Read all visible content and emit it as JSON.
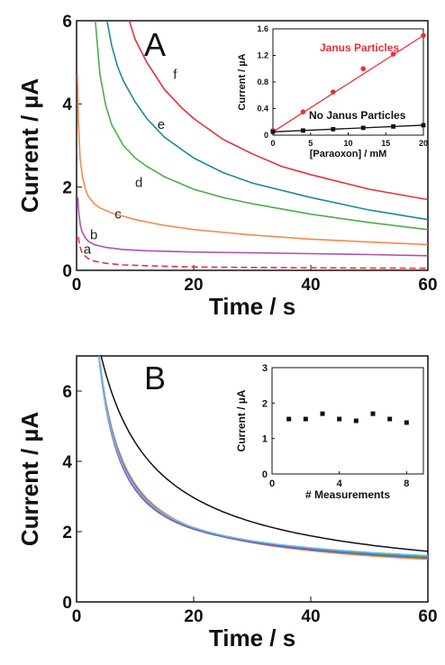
{
  "chart_data": [
    {
      "panel": "A",
      "type": "line",
      "xlabel": "Time / s",
      "ylabel": "Current / µA",
      "xlim": [
        0,
        60
      ],
      "ylim": [
        0,
        6
      ],
      "xticks": [
        0,
        20,
        40,
        60
      ],
      "yticks": [
        0,
        2,
        4,
        6
      ],
      "series": [
        {
          "name": "a",
          "color": "#e8303a",
          "dashed": true,
          "x": [
            0.3,
            0.5,
            1,
            2,
            3,
            5,
            8,
            12,
            20,
            30,
            40,
            50,
            60
          ],
          "y": [
            0.8,
            0.6,
            0.4,
            0.28,
            0.22,
            0.17,
            0.13,
            0.11,
            0.08,
            0.07,
            0.06,
            0.055,
            0.05
          ]
        },
        {
          "name": "b",
          "color": "#b04fb4",
          "x": [
            0.2,
            0.4,
            0.7,
            1,
            1.5,
            2,
            3,
            5,
            8,
            12,
            20,
            30,
            40,
            50,
            60
          ],
          "y": [
            1.75,
            1.35,
            1.05,
            0.9,
            0.78,
            0.7,
            0.62,
            0.55,
            0.5,
            0.47,
            0.44,
            0.42,
            0.4,
            0.38,
            0.35
          ]
        },
        {
          "name": "c",
          "color": "#f58a4a",
          "x": [
            0.15,
            0.3,
            0.6,
            1,
            1.5,
            2,
            3,
            4,
            6,
            8,
            10,
            15,
            20,
            30,
            40,
            50,
            60
          ],
          "y": [
            4.7,
            3.6,
            2.7,
            2.25,
            1.95,
            1.78,
            1.6,
            1.5,
            1.38,
            1.3,
            1.22,
            1.08,
            0.98,
            0.85,
            0.75,
            0.68,
            0.62
          ]
        },
        {
          "name": "d",
          "color": "#4caf48",
          "x": [
            3.2,
            4,
            5,
            6,
            8,
            10,
            12,
            15,
            20,
            25,
            30,
            40,
            50,
            60
          ],
          "y": [
            6.0,
            4.7,
            3.95,
            3.5,
            3.0,
            2.7,
            2.5,
            2.25,
            1.95,
            1.75,
            1.6,
            1.35,
            1.15,
            0.98
          ]
        },
        {
          "name": "e",
          "color": "#1a8a96",
          "x": [
            5.2,
            6,
            7,
            8,
            10,
            12,
            15,
            20,
            25,
            30,
            40,
            50,
            60
          ],
          "y": [
            6.0,
            5.4,
            4.9,
            4.55,
            4.05,
            3.65,
            3.2,
            2.7,
            2.35,
            2.1,
            1.75,
            1.45,
            1.22
          ]
        },
        {
          "name": "f",
          "color": "#e8303a",
          "x": [
            9,
            10,
            12,
            15,
            18,
            20,
            25,
            30,
            35,
            40,
            50,
            60
          ],
          "y": [
            6.0,
            5.55,
            5.0,
            4.35,
            3.9,
            3.65,
            3.15,
            2.8,
            2.5,
            2.3,
            1.95,
            1.7
          ]
        }
      ],
      "curve_labels": [
        {
          "text": "a",
          "x": 1.2,
          "y": 0.4
        },
        {
          "text": "b",
          "x": 2.3,
          "y": 0.75
        },
        {
          "text": "c",
          "x": 6.5,
          "y": 1.25
        },
        {
          "text": "d",
          "x": 10.0,
          "y": 2.0
        },
        {
          "text": "e",
          "x": 13.8,
          "y": 3.4
        },
        {
          "text": "f",
          "x": 16.5,
          "y": 4.6
        }
      ],
      "panel_label": "A",
      "inset": {
        "type": "scatter",
        "xlabel": "[Paraoxon] / mM",
        "ylabel": "Current / µA",
        "xlim": [
          0,
          20
        ],
        "ylim": [
          0,
          1.6
        ],
        "xticks": [
          0,
          5,
          10,
          15,
          20
        ],
        "yticks": [
          0,
          0.4,
          0.8,
          1.2,
          1.6
        ],
        "series": [
          {
            "name": "Janus Particles",
            "color": "#e8303a",
            "x": [
              0,
              4,
              8,
              12,
              16,
              20
            ],
            "y": [
              0.07,
              0.35,
              0.65,
              1.0,
              1.22,
              1.5
            ],
            "fit": [
              0.05,
              1.5
            ]
          },
          {
            "name": "No Janus Particles",
            "color": "#111111",
            "x": [
              0,
              4,
              8,
              12,
              16,
              20
            ],
            "y": [
              0.05,
              0.07,
              0.09,
              0.11,
              0.13,
              0.15
            ],
            "fit": [
              0.05,
              0.15
            ]
          }
        ]
      }
    },
    {
      "panel": "B",
      "type": "line",
      "xlabel": "Time / s",
      "ylabel": "Current / µA",
      "xlim": [
        0,
        60
      ],
      "ylim": [
        0,
        7
      ],
      "xticks": [
        0,
        20,
        40,
        60
      ],
      "yticks": [
        0,
        2,
        4,
        6
      ],
      "panel_label": "B",
      "series": [
        {
          "color": "#111111",
          "a": 7.5,
          "b": 4.25,
          "c": 0.11
        },
        {
          "color": "#e8303a",
          "a": 7.5,
          "b": 6.3,
          "c": 0.23
        },
        {
          "color": "#f58a4a",
          "a": 7.5,
          "b": 5.9,
          "c": 0.22
        },
        {
          "color": "#1a8a96",
          "a": 7.5,
          "b": 6.9,
          "c": 0.25
        },
        {
          "color": "#4caf48",
          "a": 7.5,
          "b": 6.6,
          "c": 0.24
        },
        {
          "color": "#5a66c8",
          "a": 7.5,
          "b": 6.3,
          "c": 0.23
        },
        {
          "color": "#b04fb4",
          "a": 7.5,
          "b": 7.0,
          "c": 0.25
        },
        {
          "color": "#5bc8e8",
          "a": 7.5,
          "b": 6.9,
          "c": 0.24
        }
      ],
      "inset": {
        "type": "scatter",
        "xlabel": "# Measurements",
        "ylabel": "Current / µA",
        "xlim": [
          0,
          9
        ],
        "ylim": [
          0,
          3
        ],
        "xticks": [
          0,
          4,
          8
        ],
        "yticks": [
          0,
          1,
          2,
          3
        ],
        "series": [
          {
            "color": "#111111",
            "x": [
              1,
              2,
              3,
              4,
              5,
              6,
              7,
              8
            ],
            "y": [
              1.55,
              1.55,
              1.7,
              1.55,
              1.5,
              1.7,
              1.55,
              1.45
            ]
          }
        ]
      }
    }
  ]
}
